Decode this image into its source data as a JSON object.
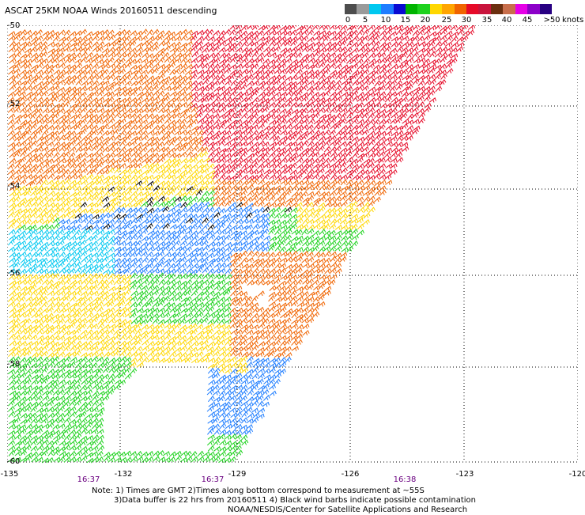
{
  "title": "ASCAT 25KM NOAA Winds 20160511 descending",
  "legend": {
    "colors": [
      "#4d4d4d",
      "#9a9a9a",
      "#00c8f0",
      "#1e7dff",
      "#0a0ad2",
      "#00b400",
      "#1ed21e",
      "#ffd700",
      "#ffa500",
      "#f06400",
      "#e60a28",
      "#c8143c",
      "#6b2f0f",
      "#c86e4b",
      "#e600e6",
      "#8c00c8",
      "#280082"
    ],
    "labels": [
      "0",
      "5",
      "10",
      "15",
      "20",
      "25",
      "30",
      "35",
      "40",
      "45",
      ">50"
    ],
    "unit": "knots"
  },
  "axes": {
    "lat_labels": [
      "-50",
      "-52",
      "-54",
      "-56",
      "-58",
      "-60"
    ],
    "lon_labels": [
      "-135",
      "-132",
      "-129",
      "-126",
      "-123",
      "-120"
    ],
    "lat_range": [
      -50,
      -60
    ],
    "lon_range": [
      -135,
      -120
    ],
    "grid": "dotted"
  },
  "times": [
    "16:37",
    "16:37",
    "16:38"
  ],
  "notes": {
    "line1": "Note: 1) Times are GMT 2)Times along bottom correspond to measurement at ~55S",
    "line2": "3)Data buffer is 22 hrs from 20160511 4) Black wind barbs indicate possible contamination",
    "line3": "NOAA/NESDIS/Center for Satellite Applications and Research"
  },
  "wind_regions": [
    {
      "name": "orange-north",
      "color": "#f06400"
    },
    {
      "name": "red-core",
      "color": "#e60a28"
    },
    {
      "name": "yellow-band",
      "color": "#ffd700"
    },
    {
      "name": "green-band",
      "color": "#1ed21e"
    },
    {
      "name": "blue-band",
      "color": "#1e7dff"
    },
    {
      "name": "cyan-band",
      "color": "#00c8f0"
    },
    {
      "name": "contamination",
      "color": "#000000"
    }
  ]
}
